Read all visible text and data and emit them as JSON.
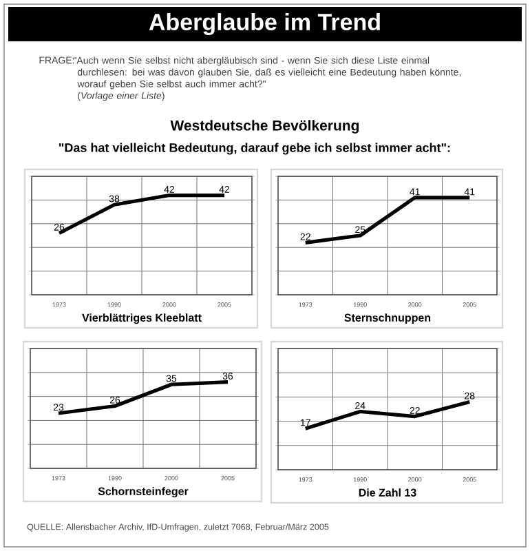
{
  "chart_data": [
    {
      "type": "line",
      "title": "Aberglaube im Trend",
      "subtitle": "Westdeutsche Bevölkerung",
      "xlabel": "Vierblättriges Kleeblatt",
      "annotations": [
        "FRAGE:",
        "\"Auch wenn Sie selbst nicht abergläubisch sind - wenn Sie sich diese Liste einmal durchlesen: bei was davon glauben Sie, daß es vielleicht eine Bedeutung haben könnte, worauf geben Sie selbst auch immer acht?\"",
        "(*Vorlage einer Liste*)",
        "\"Das hat vielleicht Bedeutung, darauf gebe ich selbst immer acht\":",
        "QUELLE:  Allensbacher Archiv, IfD-Umfragen, zuletzt 7068, Februar/März 2005"
      ],
      "categories": [
        "1973",
        "1990",
        "2000",
        "2005"
      ],
      "values": [
        26,
        38,
        42,
        42
      ],
      "color": "#000000",
      "ylim": [
        0,
        50
      ],
      "yticks": [
        {
          "value": 0,
          "label": null
        },
        {
          "value": 10,
          "label": null
        },
        {
          "value": 20,
          "label": null
        },
        {
          "value": 30,
          "label": null
        },
        {
          "value": 40,
          "label": null
        },
        {
          "value": 50,
          "label": null
        }
      ],
      "tick_labels": "x",
      "grid": true,
      "data_labels": true
    },
    {
      "type": "line",
      "xlabel": "Sternschnuppen",
      "categories": [
        "1973",
        "1990",
        "2000",
        "2005"
      ],
      "values": [
        22,
        25,
        41,
        41
      ],
      "color": "#000000",
      "ylim": [
        0,
        50
      ],
      "yticks": [
        {
          "value": 0,
          "label": null
        },
        {
          "value": 10,
          "label": null
        },
        {
          "value": 20,
          "label": null
        },
        {
          "value": 30,
          "label": null
        },
        {
          "value": 40,
          "label": null
        },
        {
          "value": 50,
          "label": null
        }
      ],
      "tick_labels": "x",
      "grid": true,
      "data_labels": true
    },
    {
      "type": "line",
      "xlabel": "Schornsteinfeger",
      "categories": [
        "1973",
        "1990",
        "2000",
        "2005"
      ],
      "values": [
        23,
        26,
        35,
        36
      ],
      "color": "#000000",
      "ylim": [
        0,
        50
      ],
      "yticks": [
        {
          "value": 0,
          "label": null
        },
        {
          "value": 10,
          "label": null
        },
        {
          "value": 20,
          "label": null
        },
        {
          "value": 30,
          "label": null
        },
        {
          "value": 40,
          "label": null
        },
        {
          "value": 50,
          "label": null
        }
      ],
      "tick_labels": "x",
      "grid": true,
      "data_labels": true
    },
    {
      "type": "line",
      "xlabel": "Die Zahl 13",
      "categories": [
        "1973",
        "1990",
        "2000",
        "2005"
      ],
      "values": [
        17,
        24,
        22,
        28
      ],
      "color": "#000000",
      "ylim": [
        0,
        50
      ],
      "yticks": [
        {
          "value": 0,
          "label": null
        },
        {
          "value": 10,
          "label": null
        },
        {
          "value": 20,
          "label": null
        },
        {
          "value": 30,
          "label": null
        },
        {
          "value": 40,
          "label": null
        },
        {
          "value": 50,
          "label": null
        }
      ],
      "tick_labels": "x",
      "grid": true,
      "data_labels": true
    }
  ]
}
